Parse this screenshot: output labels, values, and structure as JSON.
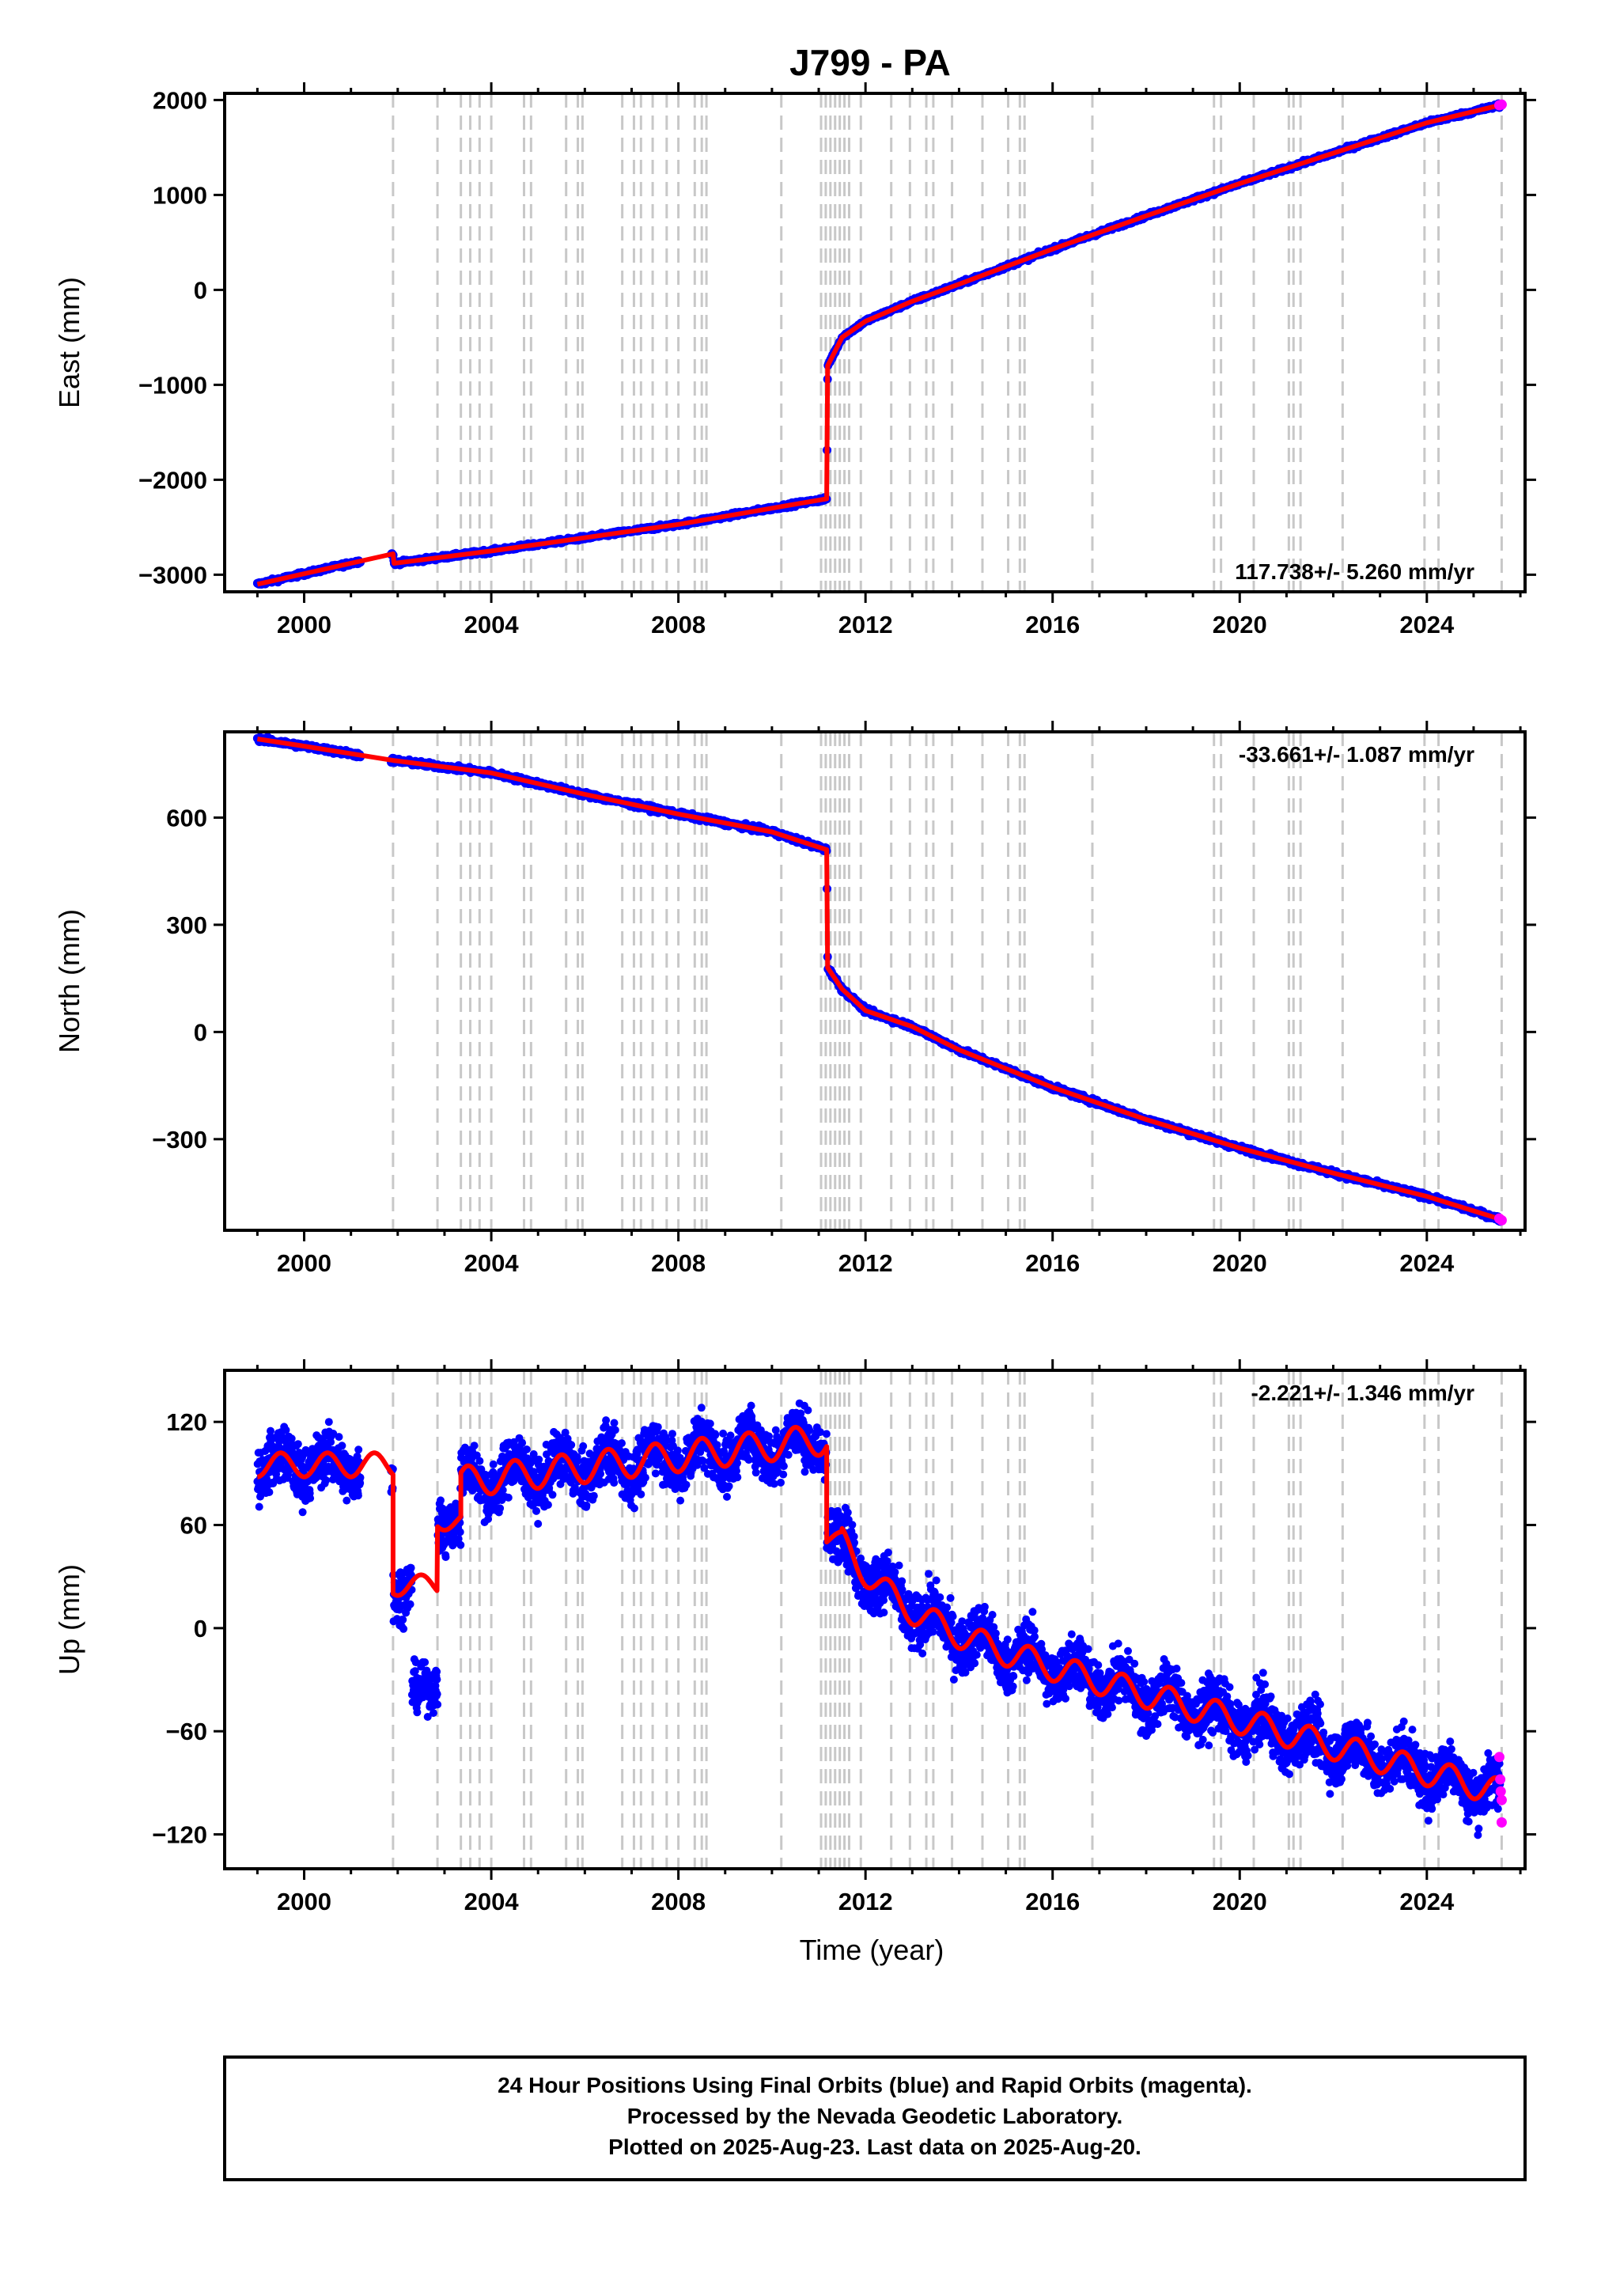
{
  "title": "J799 - PA",
  "xlabel": "Time (year)",
  "caption": {
    "line1": "24 Hour Positions Using Final Orbits (blue) and Rapid Orbits (magenta).",
    "line2": "Processed by the Nevada Geodetic Laboratory.",
    "line3": "Plotted on 2025-Aug-23. Last data on 2025-Aug-20."
  },
  "colors": {
    "final_orbits": "#0000ff",
    "rapid_orbits": "#ff00ff",
    "model": "#ff0000",
    "event_lines": "#c8c8c8",
    "frame": "#000000"
  },
  "chart_data": [
    {
      "type": "scatter",
      "component": "East",
      "ylabel": "East (mm)",
      "rate_label": "117.738+/- 5.260 mm/yr",
      "xlim": [
        1998.3,
        2026.1
      ],
      "ylim": [
        -3180,
        2070
      ],
      "xticks": [
        2000,
        2004,
        2008,
        2012,
        2016,
        2020,
        2024
      ],
      "yticks": [
        -3000,
        -2000,
        -1000,
        0,
        1000,
        2000
      ],
      "event_lines_years": [
        2001.9,
        2002.85,
        2003.35,
        2003.55,
        2003.75,
        2004.0,
        2004.7,
        2004.85,
        2005.6,
        2005.85,
        2005.95,
        2006.8,
        2007.05,
        2007.2,
        2007.45,
        2007.75,
        2008.0,
        2008.35,
        2008.5,
        2008.6,
        2010.2,
        2011.05,
        2011.15,
        2011.25,
        2011.35,
        2011.45,
        2011.55,
        2011.65,
        2011.9,
        2012.55,
        2012.95,
        2013.3,
        2013.45,
        2013.85,
        2014.5,
        2015.05,
        2015.3,
        2015.4,
        2016.85,
        2019.45,
        2019.6,
        2020.3,
        2021.05,
        2021.15,
        2021.3,
        2022.2,
        2023.95,
        2024.25,
        2025.6
      ],
      "model_points": [
        [
          1999.0,
          -3100
        ],
        [
          2001.9,
          -2780
        ],
        [
          2001.92,
          -2880
        ],
        [
          2004.0,
          -2750
        ],
        [
          2008.0,
          -2470
        ],
        [
          2011.17,
          -2200
        ],
        [
          2011.19,
          -800
        ],
        [
          2011.5,
          -500
        ],
        [
          2012.0,
          -330
        ],
        [
          2013.0,
          -120
        ],
        [
          2014.0,
          60
        ],
        [
          2016.0,
          430
        ],
        [
          2018.0,
          780
        ],
        [
          2020.0,
          1120
        ],
        [
          2022.0,
          1440
        ],
        [
          2024.0,
          1760
        ],
        [
          2025.6,
          1950
        ]
      ],
      "final_observations_summary": "dense daily points 1999.0-2025.6 following the model, with gap 2001.2-2001.85",
      "rapid_observations": [
        [
          2025.55,
          1945
        ],
        [
          2025.6,
          1952
        ]
      ]
    },
    {
      "type": "scatter",
      "component": "North",
      "ylabel": "North (mm)",
      "rate_label": "-33.661+/- 1.087 mm/yr",
      "xlim": [
        1998.3,
        2026.1
      ],
      "ylim": [
        -555,
        840
      ],
      "xticks": [
        2000,
        2004,
        2008,
        2012,
        2016,
        2020,
        2024
      ],
      "yticks": [
        -300,
        0,
        300,
        600
      ],
      "event_lines_years": [
        2001.9,
        2002.85,
        2003.35,
        2003.55,
        2003.75,
        2004.0,
        2004.7,
        2004.85,
        2005.6,
        2005.85,
        2005.95,
        2006.8,
        2007.05,
        2007.2,
        2007.45,
        2007.75,
        2008.0,
        2008.35,
        2008.5,
        2008.6,
        2010.2,
        2011.05,
        2011.15,
        2011.25,
        2011.35,
        2011.45,
        2011.55,
        2011.65,
        2011.9,
        2012.55,
        2012.95,
        2013.3,
        2013.45,
        2013.85,
        2014.5,
        2015.05,
        2015.3,
        2015.4,
        2016.85,
        2019.45,
        2019.6,
        2020.3,
        2021.05,
        2021.15,
        2021.3,
        2022.2,
        2023.95,
        2024.25,
        2025.6
      ],
      "model_points": [
        [
          1999.0,
          820
        ],
        [
          2000.0,
          800
        ],
        [
          2001.9,
          760
        ],
        [
          2004.0,
          725
        ],
        [
          2006.0,
          665
        ],
        [
          2008.0,
          610
        ],
        [
          2010.0,
          560
        ],
        [
          2011.17,
          510
        ],
        [
          2011.19,
          180
        ],
        [
          2011.5,
          120
        ],
        [
          2012.0,
          60
        ],
        [
          2013.0,
          15
        ],
        [
          2014.0,
          -50
        ],
        [
          2016.0,
          -155
        ],
        [
          2018.0,
          -245
        ],
        [
          2020.0,
          -325
        ],
        [
          2022.0,
          -395
        ],
        [
          2024.0,
          -460
        ],
        [
          2025.6,
          -525
        ]
      ],
      "final_observations_summary": "dense daily points 1999.0-2025.6 following the model, with gap 2001.2-2001.85",
      "rapid_observations": [
        [
          2025.55,
          -522
        ],
        [
          2025.6,
          -527
        ]
      ]
    },
    {
      "type": "scatter",
      "component": "Up",
      "ylabel": "Up (mm)",
      "rate_label": "-2.221+/- 1.346 mm/yr",
      "xlim": [
        1998.3,
        2026.1
      ],
      "ylim": [
        -140,
        150
      ],
      "xticks": [
        2000,
        2004,
        2008,
        2012,
        2016,
        2020,
        2024
      ],
      "yticks": [
        -120,
        -60,
        0,
        60,
        120
      ],
      "event_lines_years": [
        2001.9,
        2002.85,
        2003.35,
        2003.55,
        2003.75,
        2004.0,
        2004.7,
        2004.85,
        2005.6,
        2005.85,
        2005.95,
        2006.8,
        2007.05,
        2007.2,
        2007.45,
        2007.75,
        2008.0,
        2008.35,
        2008.5,
        2008.6,
        2010.2,
        2011.05,
        2011.15,
        2011.25,
        2011.35,
        2011.45,
        2011.55,
        2011.65,
        2011.9,
        2012.55,
        2012.95,
        2013.3,
        2013.45,
        2013.85,
        2014.5,
        2015.05,
        2015.3,
        2015.4,
        2016.85,
        2019.45,
        2019.6,
        2020.3,
        2021.05,
        2021.15,
        2021.3,
        2022.2,
        2023.95,
        2024.25,
        2025.6
      ],
      "model_segments": [
        {
          "start": 1999.0,
          "end": 2001.9,
          "base": 95,
          "trend": 0,
          "amplitude": 7
        },
        {
          "start": 2001.9,
          "end": 2002.85,
          "base": 25,
          "trend": 0,
          "amplitude": 6
        },
        {
          "start": 2002.85,
          "end": 2003.35,
          "base": 62,
          "trend": 0,
          "amplitude": 5
        },
        {
          "start": 2003.35,
          "end": 2011.17,
          "base": 85,
          "trend": 3.2,
          "amplitude": 9
        },
        {
          "start": 2011.17,
          "end": 2011.5,
          "base": 52,
          "trend": 0,
          "amplitude": 4
        }
      ],
      "model_decay": {
        "start": 2011.5,
        "end": 2025.6,
        "start_value": 40,
        "decay_value": 40,
        "decay_years": 1.2,
        "offset": 10,
        "trend": -7.5,
        "amplitude": 8
      },
      "observation_scatter_mm": 10,
      "anomaly_cluster": {
        "start": 2002.3,
        "end": 2002.85,
        "center": -35,
        "spread": 14
      },
      "rapid_observations": [
        [
          2025.55,
          -75
        ],
        [
          2025.57,
          -88
        ],
        [
          2025.58,
          -95
        ],
        [
          2025.6,
          -100
        ],
        [
          2025.6,
          -113
        ]
      ]
    }
  ]
}
